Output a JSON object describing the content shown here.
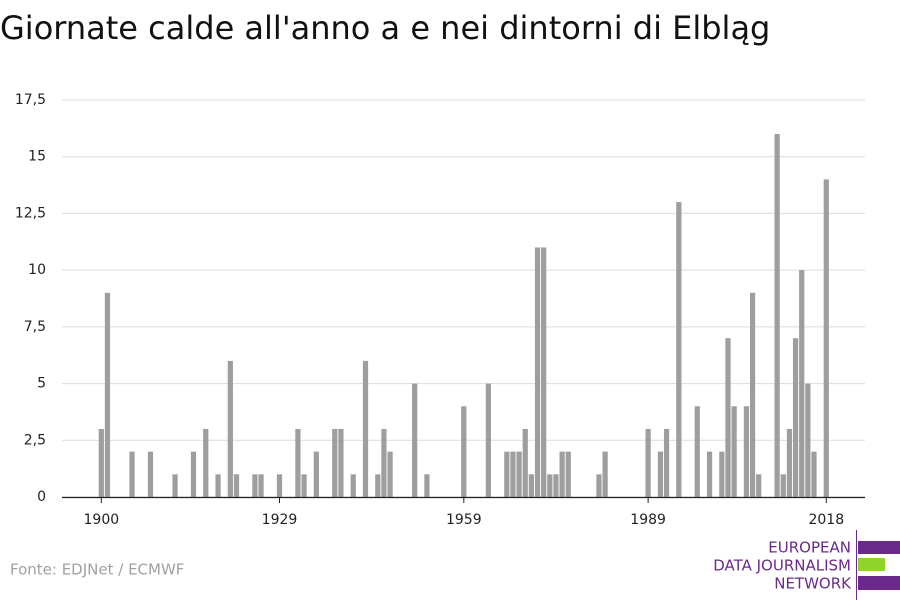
{
  "chart_data": {
    "type": "bar",
    "title": "Giornate calde all'anno a e nei dintorni di Elbląg",
    "source": "Fonte: EDJNet / ECMWF",
    "logo": [
      "EUROPEAN",
      "DATA JOURNALISM",
      "NETWORK"
    ],
    "color": "#9e9e9e",
    "grid": true,
    "x": [
      1900,
      1901,
      1905,
      1908,
      1912,
      1915,
      1917,
      1919,
      1921,
      1922,
      1925,
      1926,
      1929,
      1932,
      1933,
      1935,
      1938,
      1939,
      1941,
      1943,
      1945,
      1946,
      1947,
      1951,
      1953,
      1959,
      1963,
      1966,
      1967,
      1968,
      1969,
      1970,
      1971,
      1972,
      1973,
      1974,
      1975,
      1976,
      1981,
      1982,
      1989,
      1991,
      1992,
      1994,
      1997,
      1999,
      2001,
      2002,
      2003,
      2005,
      2006,
      2007,
      2010,
      2011,
      2012,
      2013,
      2014,
      2015,
      2016,
      2018
    ],
    "values": [
      3,
      9,
      2,
      2,
      1,
      2,
      3,
      1,
      6,
      1,
      1,
      1,
      1,
      3,
      1,
      2,
      3,
      3,
      1,
      6,
      1,
      3,
      2,
      5,
      1,
      4,
      5,
      2,
      2,
      2,
      3,
      1,
      11,
      11,
      1,
      1,
      2,
      2,
      1,
      2,
      3,
      2,
      3,
      13,
      4,
      2,
      2,
      7,
      4,
      4,
      9,
      1,
      16,
      1,
      3,
      7,
      10,
      5,
      2,
      14
    ],
    "xlim": [
      1893.6,
      2024.3
    ],
    "xticks": [
      1900,
      1929,
      1959,
      1989,
      2018
    ],
    "ylim": [
      0,
      17.5
    ],
    "yticks": [
      0,
      {
        "value": 2.5,
        "label": "2,5"
      },
      5,
      {
        "value": 7.5,
        "label": "7,5"
      },
      10,
      {
        "value": 12.5,
        "label": "12,5"
      },
      15,
      {
        "value": 17.5,
        "label": "17,5"
      }
    ]
  }
}
